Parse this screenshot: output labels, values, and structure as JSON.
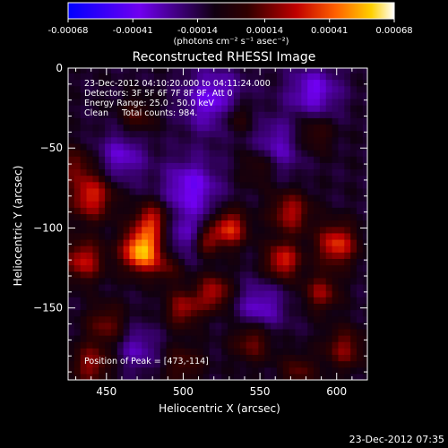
{
  "colorbar": {
    "tick_labels": [
      "-0.00068",
      "-0.00041",
      "-0.00014",
      "0.00014",
      "0.00041",
      "0.00068"
    ],
    "tick_values": [
      -0.00068,
      -0.00041,
      -0.00014,
      0.00014,
      0.00041,
      0.00068
    ],
    "range": [
      -0.00068,
      0.00068
    ],
    "units_label": "(photons cm⁻² s⁻¹ asec⁻²)",
    "colors": [
      "#0000ff",
      "#8000ff",
      "#000000",
      "#800000",
      "#ff0000",
      "#ffa500",
      "#ffff00",
      "#ffffff"
    ]
  },
  "chart_data": {
    "type": "heatmap",
    "title": "Reconstructed RHESSI Image",
    "xlabel": "Heliocentric X (arcsec)",
    "ylabel": "Heliocentric Y (arcsec)",
    "xlim": [
      425,
      620
    ],
    "ylim": [
      -195,
      0
    ],
    "x_ticks": [
      450,
      500,
      550,
      600
    ],
    "y_ticks": [
      0,
      -50,
      -100,
      -150
    ],
    "x_tick_labels": [
      "450",
      "500",
      "550",
      "600"
    ],
    "y_tick_labels": [
      "0",
      "−50",
      "−100",
      "−150"
    ],
    "annotations": [
      "23-Dec-2012 04:10:20.000 to 04:11:24.000",
      "Detectors: 3F 5F 6F 7F 8F 9F, Att 0",
      "Energy Range: 25.0 - 50.0 keV",
      "Clean     Total counts: 984."
    ],
    "peak_label": "Position of Peak = [473,-114]",
    "peak": [
      473,
      -114
    ],
    "blobs": [
      {
        "x": 473,
        "y": -114,
        "amp": 0.00068,
        "sigma": 9
      },
      {
        "x": 480,
        "y": -95,
        "amp": 0.0004,
        "sigma": 8
      },
      {
        "x": 440,
        "y": -80,
        "amp": 0.00042,
        "sigma": 10
      },
      {
        "x": 435,
        "y": -120,
        "amp": 0.00038,
        "sigma": 9
      },
      {
        "x": 430,
        "y": -60,
        "amp": 0.00022,
        "sigma": 8
      },
      {
        "x": 450,
        "y": -160,
        "amp": 0.00025,
        "sigma": 9
      },
      {
        "x": 440,
        "y": -185,
        "amp": 0.0003,
        "sigma": 9
      },
      {
        "x": 515,
        "y": -108,
        "amp": 0.00028,
        "sigma": 6
      },
      {
        "x": 530,
        "y": -100,
        "amp": 0.00045,
        "sigma": 8
      },
      {
        "x": 520,
        "y": -140,
        "amp": 0.00035,
        "sigma": 8
      },
      {
        "x": 500,
        "y": -150,
        "amp": 0.00032,
        "sigma": 8
      },
      {
        "x": 490,
        "y": -125,
        "amp": 0.00018,
        "sigma": 7
      },
      {
        "x": 545,
        "y": -170,
        "amp": 0.00028,
        "sigma": 9
      },
      {
        "x": 565,
        "y": -120,
        "amp": 0.00042,
        "sigma": 8
      },
      {
        "x": 570,
        "y": -90,
        "amp": 0.00035,
        "sigma": 9
      },
      {
        "x": 550,
        "y": -60,
        "amp": 0.00022,
        "sigma": 9
      },
      {
        "x": 600,
        "y": -110,
        "amp": 0.00045,
        "sigma": 9
      },
      {
        "x": 590,
        "y": -140,
        "amp": 0.0003,
        "sigma": 8
      },
      {
        "x": 605,
        "y": -175,
        "amp": 0.00028,
        "sigma": 9
      },
      {
        "x": 575,
        "y": -190,
        "amp": 0.00022,
        "sigma": 8
      },
      {
        "x": 500,
        "y": -185,
        "amp": 0.0002,
        "sigma": 9
      },
      {
        "x": 470,
        "y": -30,
        "amp": 0.0002,
        "sigma": 8
      },
      {
        "x": 535,
        "y": -30,
        "amp": 0.00022,
        "sigma": 8
      },
      {
        "x": 585,
        "y": -40,
        "amp": 0.0002,
        "sigma": 9
      },
      {
        "x": 505,
        "y": -75,
        "amp": -0.0003,
        "sigma": 13
      },
      {
        "x": 520,
        "y": -20,
        "amp": -0.0003,
        "sigma": 14
      },
      {
        "x": 585,
        "y": -15,
        "amp": -0.00028,
        "sigma": 12
      },
      {
        "x": 560,
        "y": -50,
        "amp": -0.00025,
        "sigma": 12
      },
      {
        "x": 460,
        "y": -55,
        "amp": -0.00024,
        "sigma": 11
      },
      {
        "x": 500,
        "y": -105,
        "amp": -0.0002,
        "sigma": 10
      },
      {
        "x": 550,
        "y": -150,
        "amp": -0.00025,
        "sigma": 11
      },
      {
        "x": 470,
        "y": -175,
        "amp": -0.0002,
        "sigma": 10
      }
    ],
    "colorbar_tick_positions": "linear",
    "grid": false
  },
  "footer": {
    "timestamp": "23-Dec-2012 07:35"
  }
}
